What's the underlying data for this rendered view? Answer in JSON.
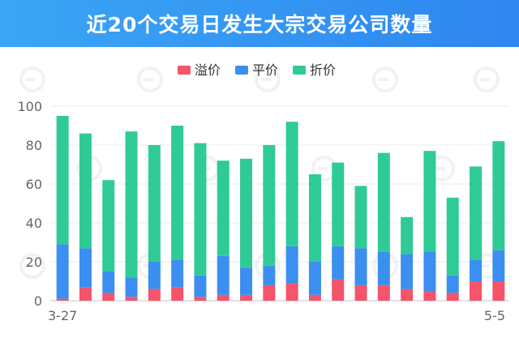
{
  "header": {
    "title": "近20个交易日发生大宗交易公司数量"
  },
  "colors": {
    "premium": "#f5546b",
    "par": "#3b8ff0",
    "discount": "#2fcb97",
    "header": "#3597f3"
  },
  "chart_data": {
    "type": "bar",
    "stacked": true,
    "title": "近20个交易日发生大宗交易公司数量",
    "xlabel": "",
    "ylabel": "",
    "ylim": [
      0,
      100
    ],
    "yticks": [
      "0",
      "20",
      "40",
      "60",
      "80",
      "100"
    ],
    "grid": true,
    "legend": "top-center",
    "x_tick_labels": [
      "3-27",
      "5-5"
    ],
    "categories": [
      "3-27",
      "",
      "",
      "",
      "",
      "",
      "",
      "",
      "",
      "",
      "",
      "",
      "",
      "",
      "",
      "",
      "",
      "",
      "",
      "5-5"
    ],
    "series": [
      {
        "name": "溢价",
        "color": "#f5546b",
        "values": [
          1,
          7,
          4,
          2,
          6,
          7,
          2,
          3,
          3,
          8,
          9,
          3,
          11,
          8,
          8,
          6,
          5,
          4,
          10,
          10
        ]
      },
      {
        "name": "平价",
        "color": "#3b8ff0",
        "values": [
          28,
          20,
          11,
          10,
          14,
          14,
          11,
          20,
          14,
          10,
          19,
          17,
          17,
          19,
          17,
          18,
          20,
          9,
          11,
          16
        ]
      },
      {
        "name": "折价",
        "color": "#2fcb97",
        "values": [
          66,
          59,
          47,
          75,
          60,
          69,
          68,
          49,
          56,
          62,
          64,
          45,
          43,
          32,
          51,
          19,
          52,
          40,
          48,
          56
        ]
      }
    ]
  }
}
